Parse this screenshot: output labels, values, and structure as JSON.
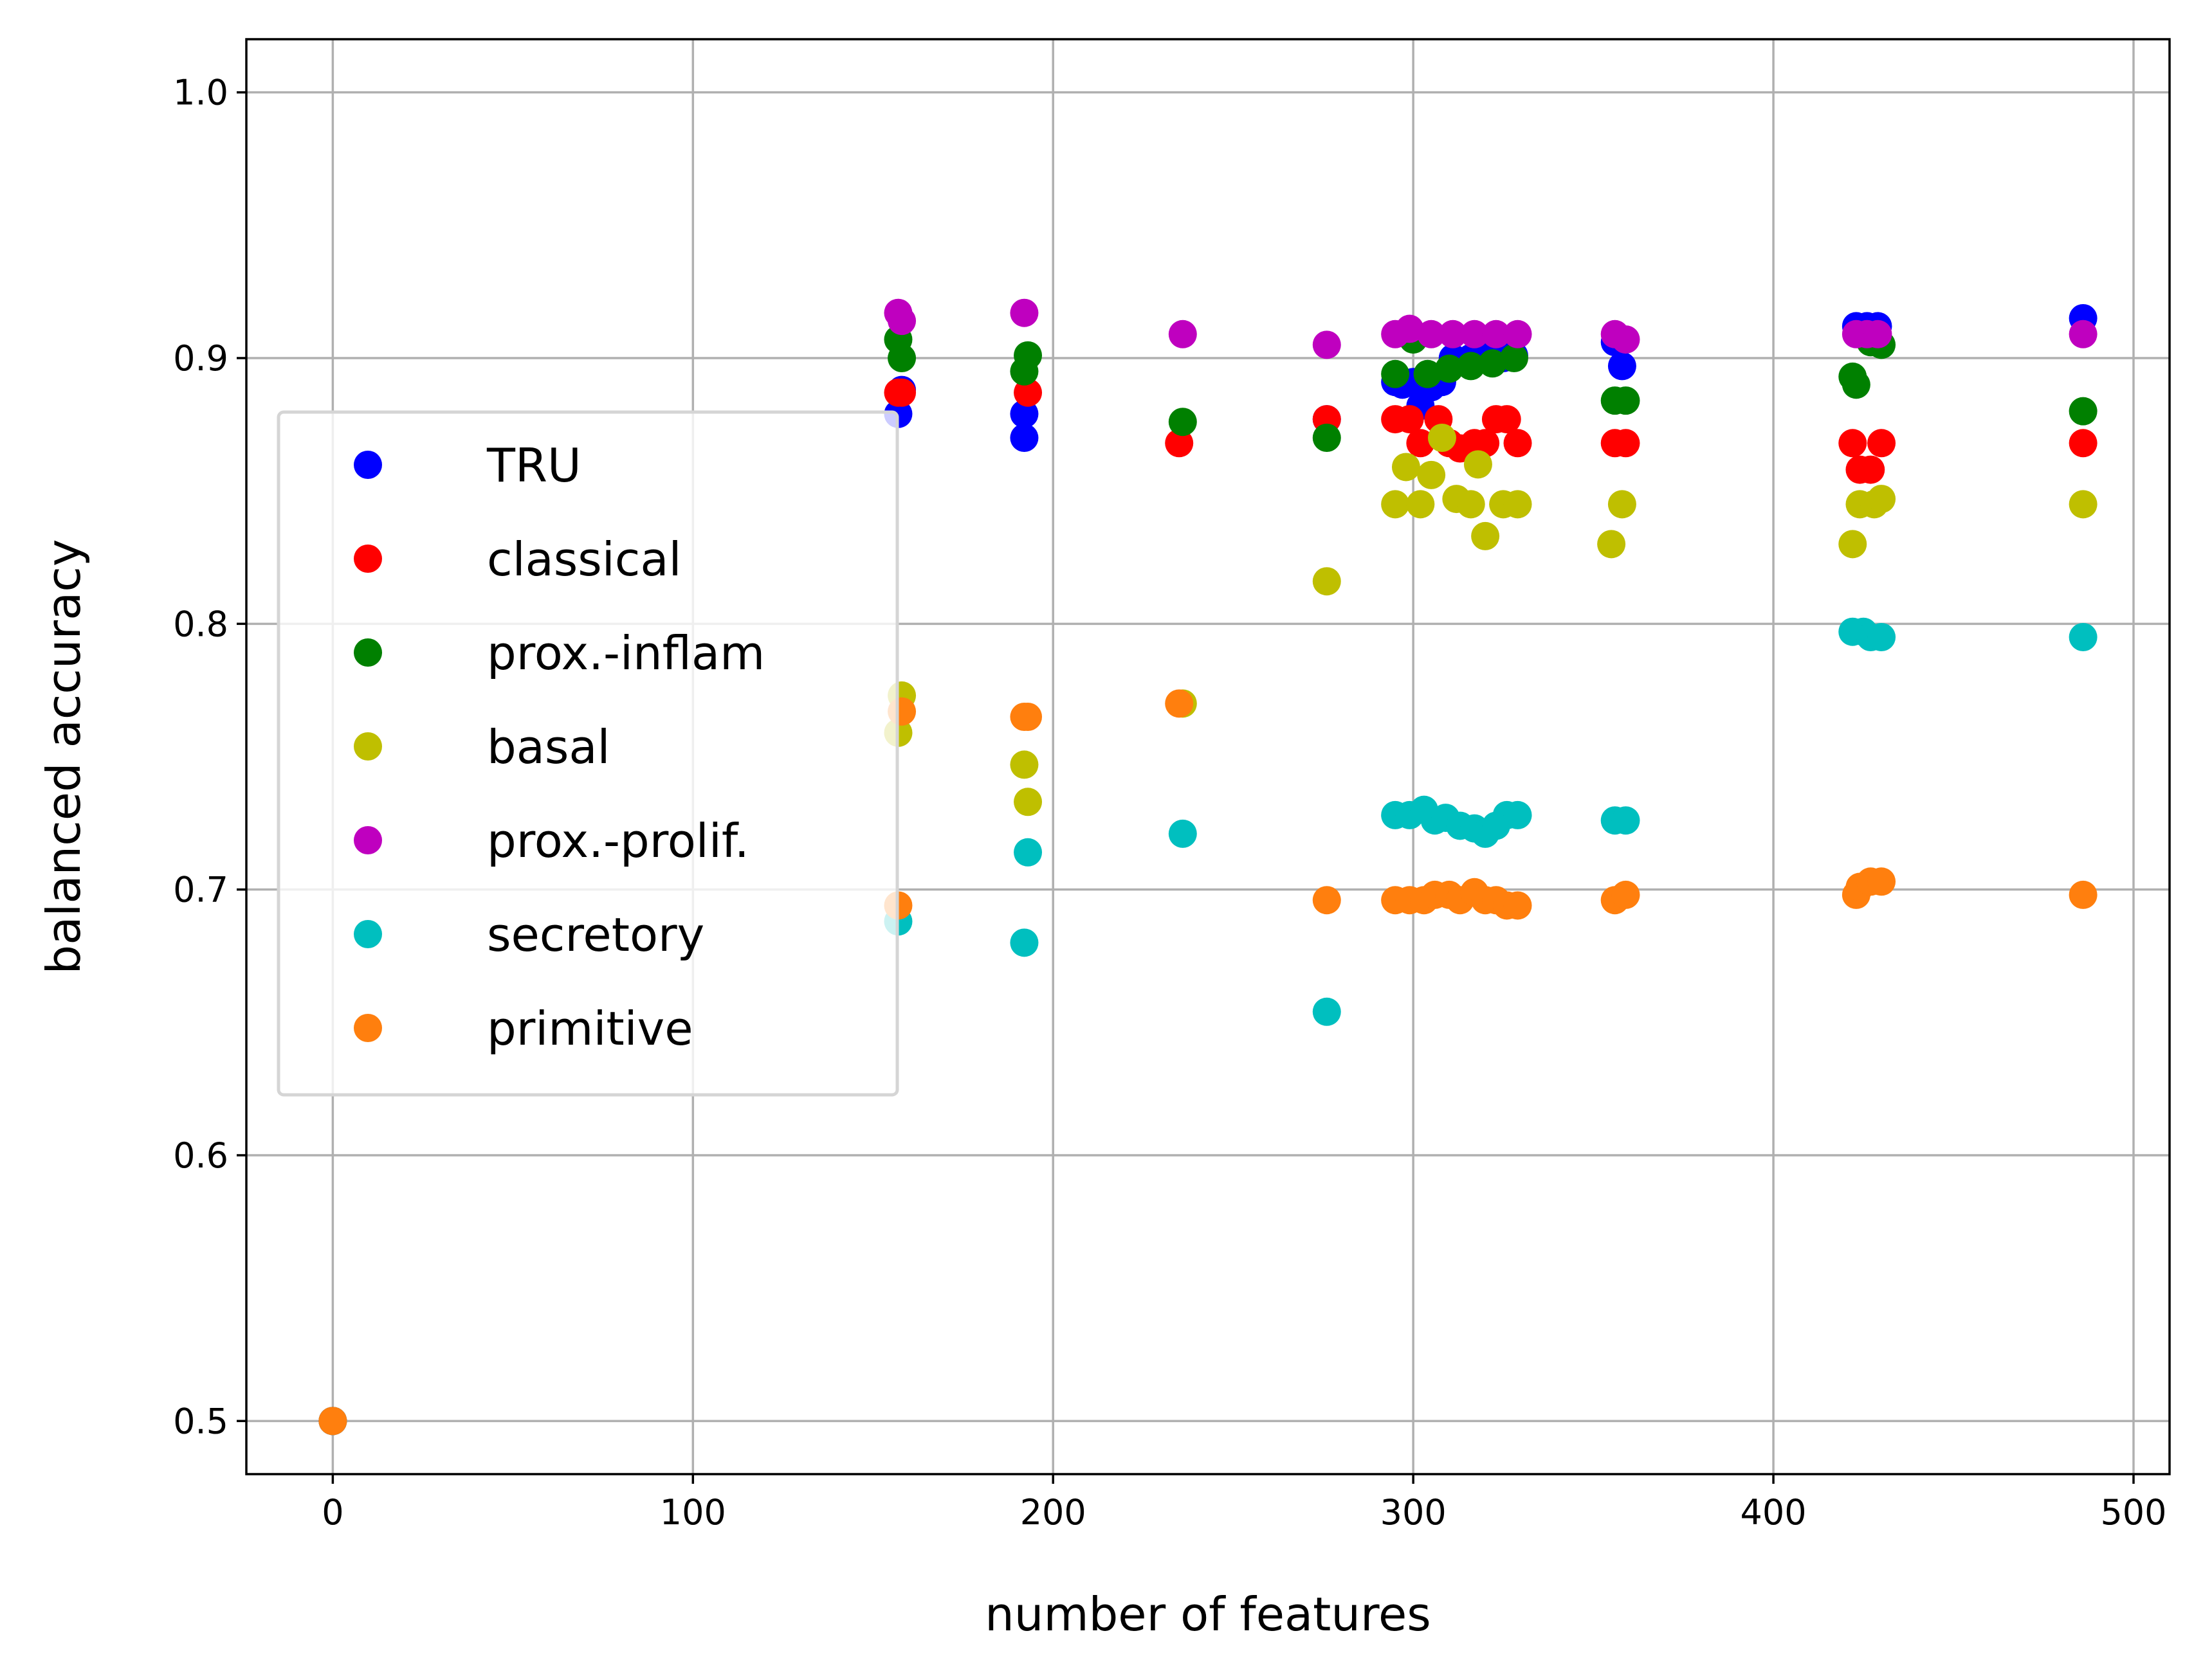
{
  "chart_data": {
    "type": "scatter",
    "title": "",
    "xlabel": "number of features",
    "ylabel": "balanced accuracy",
    "xlim": [
      -24,
      510
    ],
    "ylim": [
      0.48,
      1.02
    ],
    "xticks": [
      0,
      100,
      200,
      300,
      400,
      500
    ],
    "yticks": [
      0.5,
      0.6,
      0.7,
      0.8,
      0.9,
      1.0
    ],
    "xtick_labels": [
      "0",
      "100",
      "200",
      "300",
      "400",
      "500"
    ],
    "ytick_labels": [
      "0.5",
      "0.6",
      "0.7",
      "0.8",
      "0.9",
      "1.0"
    ],
    "grid": true,
    "legend_position": "center-left",
    "series": [
      {
        "name": "TRU",
        "color": "#0000ff",
        "points": [
          [
            0,
            0.5
          ],
          [
            157,
            0.879
          ],
          [
            158,
            0.888
          ],
          [
            192,
            0.87
          ],
          [
            192,
            0.879
          ],
          [
            276,
            0.877
          ],
          [
            295,
            0.891
          ],
          [
            297,
            0.89
          ],
          [
            300,
            0.891
          ],
          [
            302,
            0.882
          ],
          [
            305,
            0.889
          ],
          [
            308,
            0.891
          ],
          [
            311,
            0.9
          ],
          [
            316,
            0.9
          ],
          [
            320,
            0.901
          ],
          [
            325,
            0.9
          ],
          [
            328,
            0.901
          ],
          [
            356,
            0.906
          ],
          [
            358,
            0.897
          ],
          [
            423,
            0.912
          ],
          [
            426,
            0.912
          ],
          [
            429,
            0.912
          ],
          [
            486,
            0.915
          ]
        ]
      },
      {
        "name": "classical",
        "color": "#ff0000",
        "points": [
          [
            0,
            0.5
          ],
          [
            157,
            0.887
          ],
          [
            158,
            0.887
          ],
          [
            193,
            0.887
          ],
          [
            235,
            0.868
          ],
          [
            276,
            0.877
          ],
          [
            295,
            0.877
          ],
          [
            299,
            0.877
          ],
          [
            302,
            0.868
          ],
          [
            307,
            0.877
          ],
          [
            310,
            0.868
          ],
          [
            313,
            0.866
          ],
          [
            317,
            0.868
          ],
          [
            320,
            0.868
          ],
          [
            323,
            0.877
          ],
          [
            326,
            0.877
          ],
          [
            329,
            0.868
          ],
          [
            356,
            0.868
          ],
          [
            359,
            0.868
          ],
          [
            422,
            0.868
          ],
          [
            424,
            0.858
          ],
          [
            427,
            0.858
          ],
          [
            430,
            0.868
          ],
          [
            486,
            0.868
          ]
        ]
      },
      {
        "name": "prox.-inflam",
        "color": "#008000",
        "points": [
          [
            0,
            0.5
          ],
          [
            157,
            0.907
          ],
          [
            158,
            0.9
          ],
          [
            192,
            0.895
          ],
          [
            193,
            0.901
          ],
          [
            236,
            0.876
          ],
          [
            276,
            0.87
          ],
          [
            295,
            0.894
          ],
          [
            300,
            0.907
          ],
          [
            304,
            0.894
          ],
          [
            310,
            0.896
          ],
          [
            316,
            0.897
          ],
          [
            322,
            0.898
          ],
          [
            328,
            0.9
          ],
          [
            356,
            0.884
          ],
          [
            359,
            0.884
          ],
          [
            422,
            0.893
          ],
          [
            423,
            0.89
          ],
          [
            427,
            0.906
          ],
          [
            430,
            0.905
          ],
          [
            486,
            0.88
          ]
        ]
      },
      {
        "name": "basal",
        "color": "#bfbf00",
        "points": [
          [
            0,
            0.5
          ],
          [
            157,
            0.759
          ],
          [
            158,
            0.773
          ],
          [
            192,
            0.747
          ],
          [
            193,
            0.733
          ],
          [
            236,
            0.77
          ],
          [
            276,
            0.816
          ],
          [
            295,
            0.845
          ],
          [
            298,
            0.859
          ],
          [
            302,
            0.845
          ],
          [
            305,
            0.856
          ],
          [
            308,
            0.87
          ],
          [
            312,
            0.847
          ],
          [
            316,
            0.845
          ],
          [
            318,
            0.86
          ],
          [
            320,
            0.833
          ],
          [
            325,
            0.845
          ],
          [
            329,
            0.845
          ],
          [
            355,
            0.83
          ],
          [
            358,
            0.845
          ],
          [
            422,
            0.83
          ],
          [
            424,
            0.845
          ],
          [
            428,
            0.845
          ],
          [
            430,
            0.847
          ],
          [
            486,
            0.845
          ]
        ]
      },
      {
        "name": "prox.-prolif.",
        "color": "#bf00bf",
        "points": [
          [
            0,
            0.5
          ],
          [
            157,
            0.917
          ],
          [
            158,
            0.914
          ],
          [
            192,
            0.917
          ],
          [
            236,
            0.909
          ],
          [
            276,
            0.905
          ],
          [
            295,
            0.909
          ],
          [
            299,
            0.911
          ],
          [
            305,
            0.909
          ],
          [
            311,
            0.909
          ],
          [
            317,
            0.909
          ],
          [
            323,
            0.909
          ],
          [
            329,
            0.909
          ],
          [
            356,
            0.909
          ],
          [
            359,
            0.907
          ],
          [
            423,
            0.909
          ],
          [
            426,
            0.909
          ],
          [
            429,
            0.909
          ],
          [
            486,
            0.909
          ]
        ]
      },
      {
        "name": "secretory",
        "color": "#00bfbf",
        "points": [
          [
            0,
            0.5
          ],
          [
            157,
            0.688
          ],
          [
            192,
            0.68
          ],
          [
            193,
            0.714
          ],
          [
            236,
            0.721
          ],
          [
            276,
            0.654
          ],
          [
            295,
            0.728
          ],
          [
            299,
            0.728
          ],
          [
            303,
            0.73
          ],
          [
            306,
            0.726
          ],
          [
            309,
            0.727
          ],
          [
            313,
            0.724
          ],
          [
            317,
            0.723
          ],
          [
            320,
            0.721
          ],
          [
            323,
            0.724
          ],
          [
            326,
            0.728
          ],
          [
            329,
            0.728
          ],
          [
            356,
            0.726
          ],
          [
            359,
            0.726
          ],
          [
            422,
            0.797
          ],
          [
            425,
            0.797
          ],
          [
            427,
            0.795
          ],
          [
            430,
            0.795
          ],
          [
            486,
            0.795
          ]
        ]
      },
      {
        "name": "primitive",
        "color": "#ff7f0e",
        "points": [
          [
            0,
            0.5
          ],
          [
            157,
            0.694
          ],
          [
            158,
            0.767
          ],
          [
            192,
            0.765
          ],
          [
            193,
            0.765
          ],
          [
            235,
            0.77
          ],
          [
            276,
            0.696
          ],
          [
            295,
            0.696
          ],
          [
            299,
            0.696
          ],
          [
            303,
            0.696
          ],
          [
            306,
            0.698
          ],
          [
            310,
            0.698
          ],
          [
            313,
            0.696
          ],
          [
            317,
            0.699
          ],
          [
            320,
            0.696
          ],
          [
            323,
            0.696
          ],
          [
            326,
            0.694
          ],
          [
            329,
            0.694
          ],
          [
            356,
            0.696
          ],
          [
            359,
            0.698
          ],
          [
            423,
            0.698
          ],
          [
            424,
            0.701
          ],
          [
            427,
            0.703
          ],
          [
            430,
            0.703
          ],
          [
            486,
            0.698
          ]
        ]
      }
    ]
  }
}
